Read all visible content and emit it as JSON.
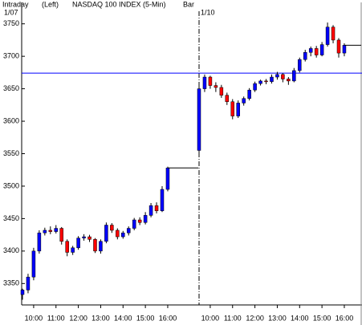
{
  "header": {
    "left": "Intraday",
    "side": "(Left)",
    "title": "NASDAQ 100 INDEX (5-Min)",
    "style": "Bar"
  },
  "chart_data": [
    {
      "type": "candlestick",
      "date": "1/07",
      "up_color": "#0000ff",
      "down_color": "#ff0000",
      "ylim": [
        3317,
        3783
      ],
      "yticks": [
        3350,
        3400,
        3450,
        3500,
        3550,
        3600,
        3650,
        3700,
        3750
      ],
      "hline": 3674,
      "hline_color": "#0000ff",
      "categories": [
        null,
        null,
        "10:00",
        null,
        null,
        null,
        "11:00",
        null,
        null,
        null,
        "12:00",
        null,
        null,
        null,
        "13:00",
        null,
        null,
        null,
        "14:00",
        null,
        null,
        null,
        "15:00",
        null,
        null,
        null,
        "16:00"
      ],
      "open": [
        3333,
        3340,
        3360,
        3400,
        3428,
        3432,
        3430,
        3435,
        3415,
        3398,
        3405,
        3420,
        3422,
        3418,
        3400,
        3415,
        3440,
        3432,
        3422,
        3428,
        3435,
        3448,
        3444,
        3455,
        3470,
        3462,
        3495
      ],
      "high": [
        3342,
        3365,
        3405,
        3432,
        3436,
        3438,
        3440,
        3437,
        3418,
        3408,
        3423,
        3426,
        3425,
        3420,
        3418,
        3444,
        3443,
        3435,
        3431,
        3438,
        3451,
        3452,
        3460,
        3474,
        3475,
        3500,
        3530
      ],
      "low": [
        3325,
        3335,
        3355,
        3396,
        3424,
        3426,
        3427,
        3410,
        3392,
        3394,
        3402,
        3416,
        3414,
        3397,
        3396,
        3412,
        3428,
        3418,
        3419,
        3424,
        3432,
        3440,
        3441,
        3452,
        3458,
        3460,
        3492
      ],
      "close": [
        3340,
        3360,
        3400,
        3428,
        3432,
        3430,
        3435,
        3415,
        3398,
        3405,
        3420,
        3422,
        3418,
        3400,
        3415,
        3440,
        3432,
        3422,
        3428,
        3435,
        3448,
        3444,
        3455,
        3470,
        3462,
        3495,
        3528
      ]
    },
    {
      "type": "candlestick",
      "date": "1/10",
      "up_color": "#0000ff",
      "down_color": "#ff0000",
      "ylim": [
        3317,
        3783
      ],
      "categories": [
        null,
        null,
        "10:00",
        null,
        null,
        null,
        "11:00",
        null,
        null,
        null,
        "12:00",
        null,
        null,
        null,
        "13:00",
        null,
        null,
        null,
        "14:00",
        null,
        null,
        null,
        "15:00",
        null,
        null,
        null,
        "16:00"
      ],
      "open": [
        3555,
        3650,
        3668,
        3655,
        3652,
        3640,
        3630,
        3608,
        3628,
        3635,
        3648,
        3658,
        3662,
        3661,
        3668,
        3672,
        3665,
        3662,
        3678,
        3695,
        3706,
        3712,
        3702,
        3718,
        3745,
        3725,
        3705
      ],
      "high": [
        3655,
        3672,
        3670,
        3660,
        3656,
        3644,
        3634,
        3632,
        3638,
        3651,
        3661,
        3664,
        3665,
        3672,
        3676,
        3674,
        3668,
        3682,
        3698,
        3710,
        3715,
        3716,
        3722,
        3752,
        3748,
        3728,
        3720
      ],
      "low": [
        3550,
        3645,
        3650,
        3645,
        3636,
        3625,
        3603,
        3605,
        3624,
        3632,
        3645,
        3655,
        3657,
        3658,
        3664,
        3660,
        3656,
        3660,
        3675,
        3692,
        3700,
        3698,
        3700,
        3715,
        3720,
        3698,
        3700
      ],
      "close": [
        3650,
        3668,
        3655,
        3652,
        3640,
        3630,
        3608,
        3628,
        3635,
        3648,
        3658,
        3662,
        3661,
        3668,
        3672,
        3665,
        3662,
        3678,
        3695,
        3706,
        3712,
        3702,
        3718,
        3745,
        3725,
        3705,
        3717
      ]
    }
  ]
}
